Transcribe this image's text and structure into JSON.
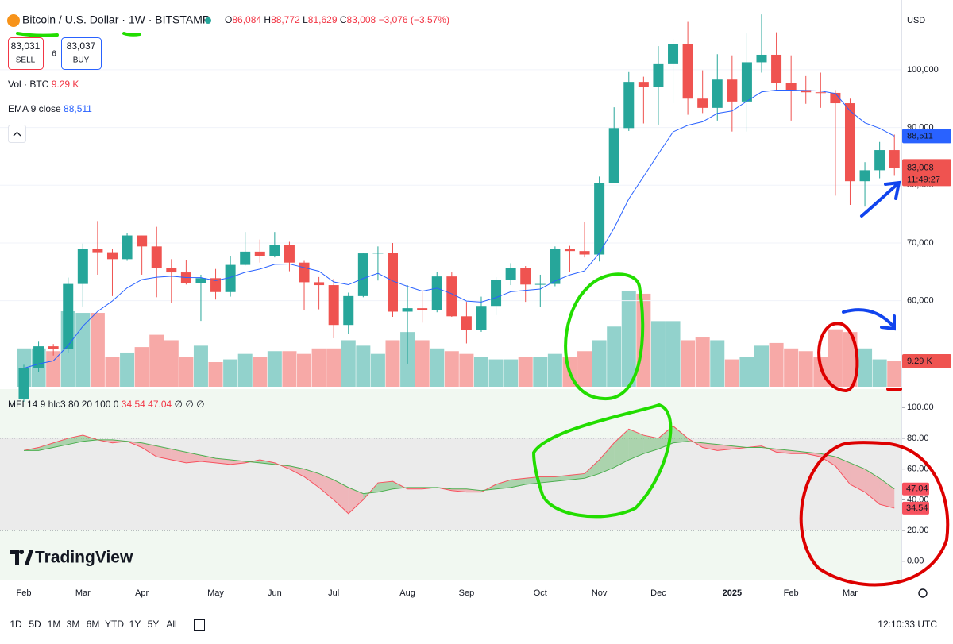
{
  "header": {
    "symbol": "Bitcoin / U.S. Dollar · 1W · BITSTAMP",
    "ohlc": [
      {
        "key": "O",
        "value": "86,084"
      },
      {
        "key": "H",
        "value": "88,772"
      },
      {
        "key": "L",
        "value": "81,629"
      },
      {
        "key": "C",
        "value": "83,008"
      }
    ],
    "change": "−3,076 (−3.57%)",
    "sell": {
      "price": "83,031",
      "label": "SELL"
    },
    "spread": "6",
    "buy": {
      "price": "83,037",
      "label": "BUY"
    }
  },
  "chart_data": [
    {
      "type": "candlestick",
      "currency": "USD",
      "categories": [
        "Feb",
        null,
        null,
        null,
        "Mar",
        null,
        null,
        null,
        "Apr",
        null,
        null,
        null,
        null,
        "May",
        null,
        null,
        null,
        "Jun",
        null,
        null,
        null,
        "Jul",
        null,
        null,
        null,
        null,
        "Aug",
        null,
        null,
        null,
        "Sep",
        null,
        null,
        null,
        null,
        "Oct",
        null,
        null,
        null,
        "Nov",
        null,
        null,
        null,
        "Dec",
        null,
        null,
        null,
        null,
        "2025",
        null,
        null,
        null,
        "Feb",
        null,
        null,
        null,
        "Mar",
        null,
        null,
        null
      ],
      "open": [
        43000,
        48300,
        52100,
        51700,
        62900,
        68900,
        68400,
        67200,
        71300,
        69400,
        65700,
        64900,
        63100,
        63900,
        61500,
        66200,
        68500,
        67700,
        69600,
        66600,
        63200,
        62700,
        55800,
        60800,
        68200,
        68300,
        58100,
        58700,
        58400,
        64200,
        57300,
        54900,
        59100,
        63600,
        65600,
        62800,
        62900,
        69000,
        68600,
        68000,
        80400,
        89900,
        97900,
        97000,
        101100,
        104500,
        95000,
        93400,
        98300,
        94500,
        101300,
        102600,
        97700,
        96500,
        96100,
        96000,
        94200,
        80700,
        82600,
        86084
      ],
      "high": [
        48900,
        52900,
        52500,
        64000,
        69900,
        73800,
        68900,
        71700,
        71300,
        72800,
        67200,
        67100,
        64500,
        65500,
        67700,
        71900,
        70600,
        71900,
        70200,
        66900,
        64100,
        63800,
        61400,
        68300,
        69400,
        70000,
        62700,
        61800,
        65000,
        64900,
        59800,
        60700,
        64100,
        66500,
        66000,
        64500,
        69400,
        69500,
        73600,
        81500,
        93500,
        99600,
        98800,
        104100,
        105400,
        108300,
        99900,
        102700,
        102500,
        106300,
        109600,
        106500,
        102500,
        98900,
        99500,
        96500,
        95000,
        84000,
        87500,
        88772
      ],
      "low": [
        42500,
        47700,
        50500,
        50900,
        59000,
        64500,
        60800,
        66900,
        64500,
        60600,
        59600,
        62800,
        56500,
        60200,
        60700,
        66100,
        66600,
        67500,
        65100,
        58400,
        58500,
        53500,
        54300,
        60600,
        63500,
        57200,
        49100,
        56200,
        58000,
        57200,
        52600,
        54600,
        57500,
        62700,
        59800,
        58900,
        62500,
        65000,
        67500,
        66800,
        80400,
        89400,
        90700,
        90500,
        94200,
        92200,
        92500,
        91200,
        89300,
        89300,
        99500,
        96300,
        91200,
        94100,
        93400,
        78200,
        76600,
        76300,
        81200,
        81629
      ],
      "close": [
        48300,
        52100,
        51700,
        62900,
        68900,
        68400,
        67200,
        71300,
        69400,
        65700,
        64900,
        63100,
        63900,
        61500,
        66200,
        68500,
        67700,
        69600,
        66600,
        63200,
        62700,
        55800,
        60800,
        68200,
        68300,
        58100,
        58700,
        58400,
        64200,
        57300,
        54900,
        59100,
        63600,
        65600,
        62800,
        62900,
        69000,
        68600,
        68000,
        80400,
        89900,
        97900,
        97000,
        101100,
        104500,
        95000,
        93400,
        98300,
        94500,
        101300,
        102600,
        97700,
        96500,
        96100,
        96000,
        94200,
        80700,
        82600,
        86084,
        83008
      ],
      "up_color": "#26a69a",
      "down_color": "#ef5350",
      "ylim": [
        45100,
        111400
      ],
      "yticks": [
        {
          "value": 60000,
          "label": "60,000"
        },
        {
          "value": 70000,
          "label": "70,000"
        },
        {
          "value": 80000,
          "label": "80,000"
        },
        {
          "value": 90000,
          "label": "90,000"
        },
        {
          "value": 100000,
          "label": "100,000"
        }
      ],
      "grid": true,
      "last_label": "83,008",
      "countdown": "11:49:27",
      "ema": {
        "name": "EMA 9 close",
        "color": "#2962ff",
        "last_label": "88,511",
        "values": [
          48300,
          49060,
          49590,
          52250,
          55580,
          58140,
          59950,
          62220,
          63660,
          64070,
          64240,
          64010,
          63990,
          63490,
          64030,
          64920,
          65480,
          66300,
          66360,
          65730,
          65120,
          63260,
          62770,
          63860,
          64750,
          63420,
          62480,
          61660,
          62170,
          61200,
          59940,
          59770,
          60540,
          61550,
          61800,
          62020,
          63420,
          64460,
          65170,
          68220,
          72560,
          77630,
          81500,
          85420,
          89240,
          90390,
          90990,
          92450,
          92860,
          94550,
          96160,
          96470,
          96480,
          96400,
          96320,
          95900,
          92860,
          90810,
          89870,
          88511
        ]
      }
    },
    {
      "type": "bar",
      "name": "Vol · BTC",
      "last_label": "9.29 K",
      "ylim": [
        0,
        140
      ],
      "values": [
        14,
        14,
        13,
        27.6,
        27,
        27,
        11,
        12.5,
        14.5,
        19,
        17,
        11,
        15,
        9,
        10,
        12,
        11,
        13,
        13,
        12,
        14,
        14,
        17,
        15,
        12,
        17,
        20,
        17,
        14,
        13,
        12,
        11,
        10,
        10,
        11,
        11,
        12,
        11,
        13,
        17,
        22,
        35,
        34,
        24,
        24,
        17,
        18,
        17,
        10,
        11,
        15,
        16,
        14,
        13,
        11,
        21,
        20,
        14,
        10,
        9.29
      ],
      "up_color": "#26a69a",
      "down_color": "#ef5350"
    },
    {
      "type": "line",
      "name": "MFI 14 9 hlc3 80 20 100 0",
      "icons": "∅ ∅ ∅",
      "ylim": [
        -12,
        112
      ],
      "yticks": [
        {
          "value": 0,
          "label": "0.00"
        },
        {
          "value": 20,
          "label": "20.00"
        },
        {
          "value": 40,
          "label": "40.00"
        },
        {
          "value": 60,
          "label": "60.00"
        },
        {
          "value": 80,
          "label": "80.00"
        },
        {
          "value": 100,
          "label": "100.00"
        }
      ],
      "band": [
        20,
        80
      ],
      "series": [
        {
          "color": "#f7525f",
          "values": [
            72,
            74,
            77,
            80,
            82,
            79,
            77,
            78,
            74,
            68,
            66,
            64,
            65,
            64,
            63,
            64,
            66,
            64,
            60,
            55,
            48,
            40,
            31,
            40,
            51,
            52,
            47,
            47,
            48,
            46,
            45,
            45,
            50,
            53,
            54,
            55,
            55,
            56,
            57,
            66,
            77,
            86,
            82,
            80,
            88,
            80,
            74,
            72,
            73,
            74,
            75,
            71,
            70,
            70,
            68,
            62,
            50,
            45,
            37,
            34.54
          ]
        },
        {
          "color": "#4caf50",
          "values": [
            72,
            72,
            74,
            76,
            78,
            79,
            79,
            78,
            77,
            75,
            73,
            71,
            69,
            67,
            66,
            65,
            64,
            63,
            62,
            60,
            57,
            53,
            48,
            44,
            45,
            47,
            48,
            48,
            48,
            47,
            47,
            46,
            47,
            48,
            50,
            51,
            52,
            53,
            54,
            57,
            61,
            66,
            70,
            73,
            77,
            78,
            77,
            76,
            75,
            74,
            74,
            73,
            72,
            71,
            70,
            68,
            64,
            60,
            54,
            47.04
          ]
        }
      ]
    }
  ],
  "toolbar": {
    "ranges": [
      "1D",
      "5D",
      "1M",
      "3M",
      "6M",
      "YTD",
      "1Y",
      "5Y",
      "All"
    ],
    "clock": "12:10:33 UTC",
    "brand": "TradingView"
  }
}
